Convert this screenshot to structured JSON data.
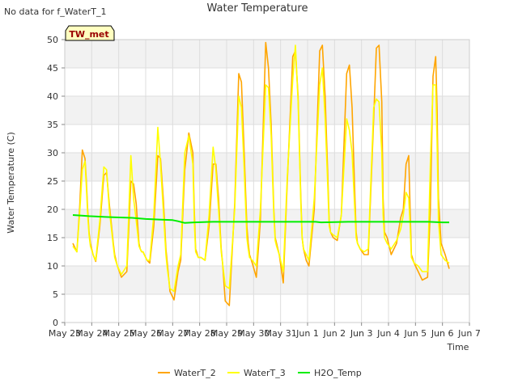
{
  "chart_data": {
    "type": "line",
    "title": "Water Temperature",
    "note": "No data for f_WaterT_1",
    "badge": "TW_met",
    "xlabel": "Time",
    "ylabel": "Water Temperature (C)",
    "ylim": [
      0,
      50
    ],
    "xlim": [
      0,
      15
    ],
    "y_ticks": [
      0,
      5,
      10,
      15,
      20,
      25,
      30,
      35,
      40,
      45,
      50
    ],
    "x_ticks": [
      {
        "v": 0,
        "label": "May 23"
      },
      {
        "v": 1,
        "label": "May 24"
      },
      {
        "v": 2,
        "label": "May 25"
      },
      {
        "v": 3,
        "label": "May 26"
      },
      {
        "v": 4,
        "label": "May 27"
      },
      {
        "v": 5,
        "label": "May 28"
      },
      {
        "v": 6,
        "label": "May 29"
      },
      {
        "v": 7,
        "label": "May 30"
      },
      {
        "v": 8,
        "label": "May 31"
      },
      {
        "v": 9,
        "label": "Jun 1"
      },
      {
        "v": 10,
        "label": "Jun 2"
      },
      {
        "v": 11,
        "label": "Jun 3"
      },
      {
        "v": 12,
        "label": "Jun 4"
      },
      {
        "v": 13,
        "label": "Jun 5"
      },
      {
        "v": 14,
        "label": "Jun 6"
      },
      {
        "v": 15,
        "label": "Jun 7"
      }
    ],
    "grid": true,
    "legend_position": "bottom",
    "series": [
      {
        "name": "WaterT_2",
        "color": "#FFA500",
        "x": [
          0.3,
          0.45,
          0.55,
          0.65,
          0.75,
          0.8,
          0.85,
          0.9,
          0.95,
          1.05,
          1.15,
          1.3,
          1.45,
          1.55,
          1.65,
          1.8,
          1.85,
          1.95,
          2.1,
          2.3,
          2.45,
          2.55,
          2.65,
          2.75,
          2.8,
          2.85,
          2.9,
          2.95,
          3.05,
          3.15,
          3.3,
          3.45,
          3.55,
          3.65,
          3.75,
          3.8,
          3.9,
          4.05,
          4.2,
          4.3,
          4.45,
          4.6,
          4.75,
          4.8,
          4.85,
          4.95,
          5.05,
          5.2,
          5.35,
          5.5,
          5.6,
          5.7,
          5.8,
          5.85,
          5.95,
          6.1,
          6.3,
          6.45,
          6.55,
          6.65,
          6.75,
          6.8,
          6.85,
          6.95,
          7.1,
          7.25,
          7.45,
          7.55,
          7.65,
          7.75,
          7.8,
          7.85,
          7.95,
          8.1,
          8.25,
          8.45,
          8.55,
          8.65,
          8.75,
          8.8,
          8.85,
          8.95,
          9.05,
          9.25,
          9.45,
          9.55,
          9.65,
          9.75,
          9.8,
          9.85,
          9.95,
          10.1,
          10.25,
          10.45,
          10.55,
          10.65,
          10.75,
          10.8,
          10.85,
          10.95,
          11.1,
          11.25,
          11.45,
          11.55,
          11.65,
          11.75,
          11.8,
          11.85,
          11.95,
          12.1,
          12.3,
          12.45,
          12.55,
          12.65,
          12.75,
          12.8,
          12.85,
          12.95,
          13.1,
          13.25,
          13.45,
          13.55,
          13.65,
          13.75,
          13.8,
          13.85,
          13.95,
          14.1,
          14.25
        ],
        "y": [
          14.0,
          12.5,
          20.0,
          30.5,
          29.0,
          25.0,
          20.0,
          16.0,
          14.0,
          12.0,
          10.8,
          17.0,
          26.0,
          26.5,
          21.0,
          14.0,
          12.0,
          10.0,
          8.0,
          9.0,
          25.0,
          24.5,
          21.0,
          14.0,
          13.0,
          12.5,
          12.5,
          12.0,
          11.0,
          10.5,
          17.0,
          29.5,
          29.0,
          22.0,
          13.0,
          10.5,
          5.5,
          4.0,
          9.0,
          11.0,
          27.0,
          33.5,
          30.0,
          20.0,
          13.0,
          11.5,
          11.5,
          11.0,
          17.0,
          28.0,
          28.0,
          22.0,
          13.0,
          10.5,
          3.8,
          3.0,
          21.0,
          44.0,
          42.5,
          30.0,
          17.0,
          14.0,
          12.0,
          10.5,
          8.0,
          18.0,
          49.5,
          45.0,
          35.0,
          20.0,
          15.0,
          14.0,
          12.0,
          7.0,
          25.0,
          47.0,
          48.0,
          40.0,
          22.0,
          15.0,
          13.0,
          11.0,
          10.0,
          20.0,
          48.0,
          49.0,
          40.0,
          26.0,
          18.0,
          16.0,
          15.0,
          14.5,
          19.0,
          44.0,
          45.5,
          38.0,
          23.0,
          16.0,
          14.0,
          13.0,
          12.0,
          12.0,
          36.0,
          48.5,
          49.0,
          39.0,
          22.0,
          16.0,
          15.0,
          12.0,
          14.0,
          18.5,
          20.0,
          28.0,
          29.5,
          20.0,
          12.0,
          10.5,
          9.0,
          7.5,
          8.0,
          20.0,
          43.5,
          47.0,
          38.0,
          22.0,
          14.0,
          12.0,
          9.5
        ]
      },
      {
        "name": "WaterT_3",
        "color": "#FFFF00",
        "x": [
          0.3,
          0.45,
          0.55,
          0.65,
          0.75,
          0.8,
          0.85,
          0.9,
          0.95,
          1.05,
          1.15,
          1.3,
          1.45,
          1.55,
          1.65,
          1.8,
          1.85,
          1.95,
          2.1,
          2.3,
          2.45,
          2.55,
          2.65,
          2.75,
          2.8,
          2.85,
          2.9,
          2.95,
          3.05,
          3.15,
          3.3,
          3.45,
          3.55,
          3.65,
          3.75,
          3.8,
          3.9,
          4.05,
          4.2,
          4.3,
          4.45,
          4.6,
          4.75,
          4.8,
          4.85,
          4.95,
          5.05,
          5.2,
          5.35,
          5.5,
          5.6,
          5.7,
          5.8,
          5.85,
          5.95,
          6.1,
          6.3,
          6.45,
          6.55,
          6.65,
          6.75,
          6.8,
          6.85,
          6.95,
          7.1,
          7.25,
          7.45,
          7.55,
          7.65,
          7.75,
          7.8,
          7.85,
          7.95,
          8.1,
          8.25,
          8.45,
          8.55,
          8.65,
          8.75,
          8.8,
          8.85,
          8.95,
          9.05,
          9.25,
          9.45,
          9.55,
          9.65,
          9.75,
          9.8,
          9.85,
          9.95,
          10.1,
          10.25,
          10.45,
          10.55,
          10.65,
          10.75,
          10.8,
          10.85,
          10.95,
          11.1,
          11.25,
          11.45,
          11.55,
          11.65,
          11.75,
          11.8,
          11.85,
          11.95,
          12.1,
          12.3,
          12.45,
          12.55,
          12.65,
          12.75,
          12.8,
          12.85,
          12.95,
          13.1,
          13.25,
          13.45,
          13.55,
          13.65,
          13.75,
          13.8,
          13.85,
          13.95,
          14.1,
          14.25
        ],
        "y": [
          13.5,
          12.5,
          19.0,
          27.0,
          28.5,
          24.0,
          19.0,
          15.5,
          13.5,
          12.0,
          11.0,
          18.0,
          27.5,
          27.0,
          20.0,
          13.5,
          11.5,
          10.0,
          8.5,
          10.0,
          29.5,
          22.0,
          18.0,
          13.5,
          13.0,
          12.5,
          12.5,
          12.0,
          11.0,
          11.0,
          19.0,
          34.5,
          28.0,
          20.0,
          12.0,
          9.5,
          6.0,
          5.5,
          10.0,
          12.0,
          30.0,
          33.0,
          28.0,
          18.0,
          12.5,
          11.5,
          11.5,
          11.0,
          19.0,
          31.0,
          27.0,
          20.0,
          12.5,
          10.5,
          6.5,
          6.0,
          20.0,
          40.0,
          38.0,
          27.0,
          15.0,
          13.0,
          11.5,
          11.0,
          10.0,
          20.0,
          42.0,
          41.5,
          33.0,
          19.0,
          14.5,
          13.5,
          12.0,
          9.0,
          26.0,
          43.0,
          49.0,
          39.0,
          21.0,
          15.0,
          13.0,
          12.0,
          11.0,
          22.0,
          42.0,
          45.0,
          36.0,
          24.0,
          17.0,
          16.0,
          15.5,
          15.0,
          19.0,
          36.0,
          34.0,
          30.0,
          20.0,
          15.0,
          14.0,
          13.0,
          12.5,
          13.0,
          38.0,
          39.5,
          39.0,
          30.0,
          19.0,
          15.0,
          14.0,
          13.0,
          14.5,
          16.5,
          19.0,
          23.0,
          22.0,
          17.0,
          11.5,
          10.5,
          10.0,
          9.0,
          9.0,
          28.0,
          42.0,
          42.0,
          32.0,
          18.0,
          12.0,
          11.0,
          10.5
        ]
      },
      {
        "name": "H2O_Temp",
        "color": "#00EE00",
        "x": [
          0.3,
          0.9,
          1.8,
          2.5,
          3.0,
          3.5,
          4.0,
          4.2,
          4.45,
          4.8,
          5.5,
          6.5,
          7.5,
          8.5,
          9.3,
          9.5,
          10.5,
          11.5,
          12.5,
          13.5,
          14.0,
          14.25
        ],
        "y": [
          19.0,
          18.8,
          18.6,
          18.5,
          18.3,
          18.2,
          18.1,
          17.9,
          17.6,
          17.7,
          17.8,
          17.8,
          17.8,
          17.8,
          17.8,
          17.7,
          17.8,
          17.8,
          17.8,
          17.8,
          17.7,
          17.7
        ]
      }
    ]
  }
}
